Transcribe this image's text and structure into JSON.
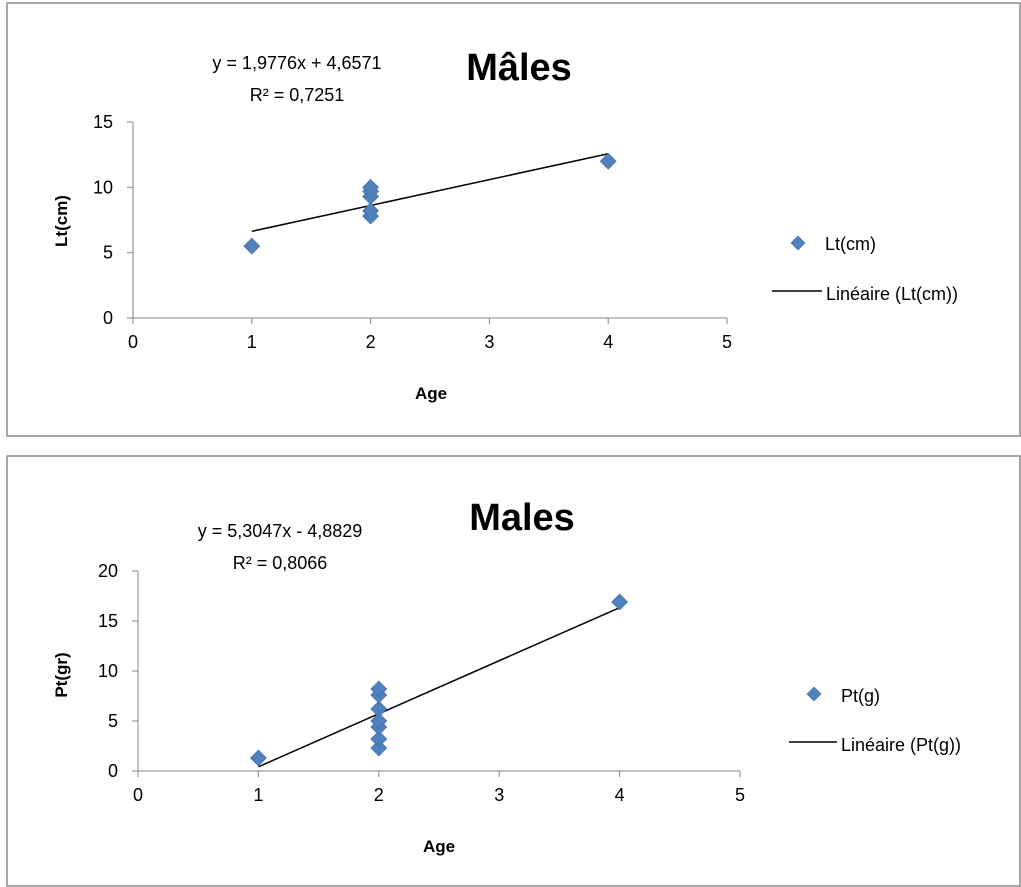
{
  "chart_data": [
    {
      "type": "scatter",
      "title": "Mâles",
      "xlabel": "Age",
      "ylabel": "Lt(cm)",
      "xlim": [
        0,
        5
      ],
      "ylim": [
        0,
        15
      ],
      "xticks": [
        "0",
        "1",
        "2",
        "3",
        "4",
        "5"
      ],
      "yticks": [
        "0",
        "5",
        "10",
        "15"
      ],
      "series": [
        {
          "name": "Lt(cm)",
          "marker": "diamond",
          "color": "#4F81BD",
          "points": [
            {
              "x": 1,
              "y": 5.5
            },
            {
              "x": 2,
              "y": 7.8
            },
            {
              "x": 2,
              "y": 8.2
            },
            {
              "x": 2,
              "y": 9.3
            },
            {
              "x": 2,
              "y": 9.7
            },
            {
              "x": 2,
              "y": 10.0
            },
            {
              "x": 4,
              "y": 12.0
            }
          ]
        }
      ],
      "trendline": {
        "name": "Linéaire (Lt(cm))",
        "slope": 1.9776,
        "intercept": 4.6571,
        "x_range": [
          1,
          4
        ],
        "color": "#000000"
      },
      "equation": "y = 1,9776x + 4,6571",
      "r_squared": "R² = 0,7251",
      "legend_position": "right"
    },
    {
      "type": "scatter",
      "title": "Males",
      "xlabel": "Age",
      "ylabel": "Pt(gr)",
      "xlim": [
        0,
        5
      ],
      "ylim": [
        0,
        20
      ],
      "xticks": [
        "0",
        "1",
        "2",
        "3",
        "4",
        "5"
      ],
      "yticks": [
        "0",
        "5",
        "10",
        "15",
        "20"
      ],
      "series": [
        {
          "name": "Pt(g)",
          "marker": "diamond",
          "color": "#4F81BD",
          "points": [
            {
              "x": 1,
              "y": 1.3
            },
            {
              "x": 2,
              "y": 2.3
            },
            {
              "x": 2,
              "y": 3.2
            },
            {
              "x": 2,
              "y": 4.4
            },
            {
              "x": 2,
              "y": 5.0
            },
            {
              "x": 2,
              "y": 6.2
            },
            {
              "x": 2,
              "y": 7.6
            },
            {
              "x": 2,
              "y": 8.2
            },
            {
              "x": 4,
              "y": 16.9
            }
          ]
        }
      ],
      "trendline": {
        "name": "Linéaire (Pt(g))",
        "slope": 5.3047,
        "intercept": -4.8829,
        "x_range": [
          1,
          4
        ],
        "color": "#000000"
      },
      "equation": "y = 5,3047x - 4,8829",
      "r_squared": "R² = 0,8066",
      "legend_position": "right"
    }
  ]
}
